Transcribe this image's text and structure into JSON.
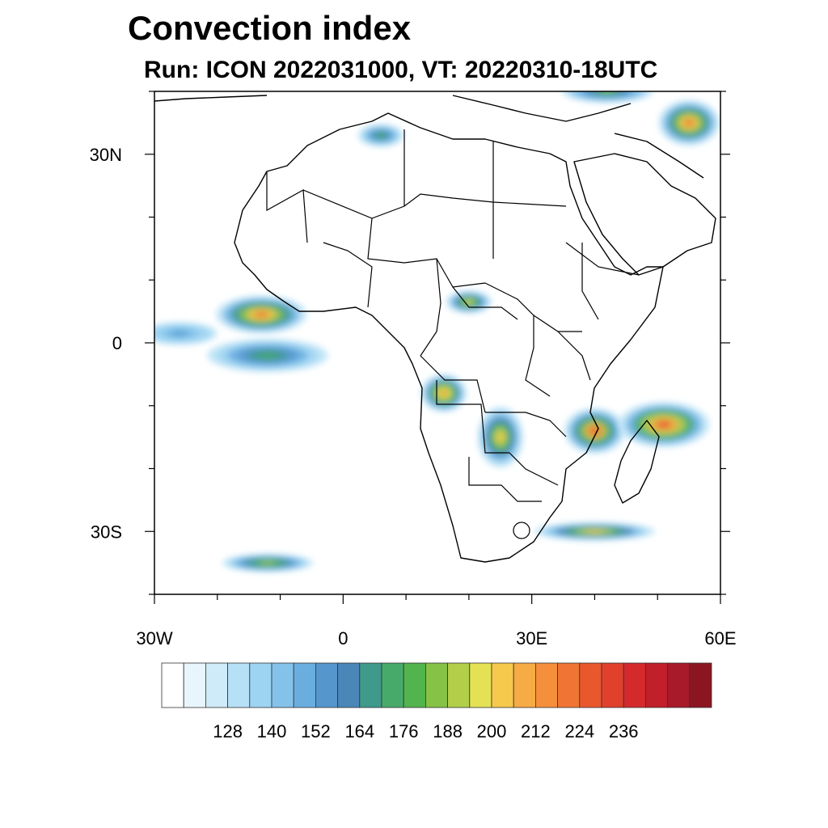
{
  "title": "Convection index",
  "subtitle": "Run: ICON 2022031000,  VT: 20220310-18UTC",
  "map": {
    "lon_range": [
      -30,
      60
    ],
    "lat_range": [
      -40,
      40
    ],
    "lat_ticks": [
      {
        "value": 30,
        "label": "30N"
      },
      {
        "value": 0,
        "label": "0"
      },
      {
        "value": -30,
        "label": "30S"
      }
    ],
    "lon_ticks": [
      {
        "value": -30,
        "label": "30W"
      },
      {
        "value": 0,
        "label": "0"
      },
      {
        "value": 30,
        "label": "30E"
      },
      {
        "value": 60,
        "label": "60E"
      }
    ],
    "minor_step": 10,
    "blobs": [
      {
        "region": "Gulf of Guinea / West Africa coast",
        "lon": -13,
        "lat": 4.5,
        "rlon": 6,
        "rlat": 2.5,
        "peak": 216
      },
      {
        "region": "Equatorial Atlantic west",
        "lon": -26,
        "lat": 1.5,
        "rlon": 5,
        "rlat": 1.5,
        "peak": 150
      },
      {
        "region": "Equatorial Atlantic south band",
        "lon": -12,
        "lat": -2,
        "rlon": 8,
        "rlat": 2.2,
        "peak": 170
      },
      {
        "region": "Angola",
        "lon": 16,
        "lat": -8,
        "rlon": 3,
        "rlat": 2.5,
        "peak": 214
      },
      {
        "region": "Zambia",
        "lon": 25,
        "lat": -15,
        "rlon": 3,
        "rlat": 4,
        "peak": 202
      },
      {
        "region": "Mozambique Channel",
        "lon": 40,
        "lat": -14,
        "rlon": 4,
        "rlat": 3,
        "peak": 222
      },
      {
        "region": "Indian Ocean east of Madagascar",
        "lon": 51,
        "lat": -13,
        "rlon": 6,
        "rlat": 3,
        "peak": 226
      },
      {
        "region": "Central African Republic",
        "lon": 20,
        "lat": 6.5,
        "rlon": 3,
        "rlat": 1.5,
        "peak": 196
      },
      {
        "region": "Persian Gulf region",
        "lon": 55,
        "lat": 35,
        "rlon": 4,
        "rlat": 3,
        "peak": 216
      },
      {
        "region": "Eastern Mediterranean",
        "lon": 42,
        "lat": 40,
        "rlon": 6,
        "rlat": 1.5,
        "peak": 180
      },
      {
        "region": "South Africa southern band",
        "lon": 40,
        "lat": -30,
        "rlon": 8,
        "rlat": 1.2,
        "peak": 200
      },
      {
        "region": "North Africa Libya",
        "lon": 6,
        "lat": 33,
        "rlon": 3,
        "rlat": 1.5,
        "peak": 170
      },
      {
        "region": "South Atlantic southwest band",
        "lon": -12,
        "lat": -35,
        "rlon": 6,
        "rlat": 1.2,
        "peak": 190
      }
    ]
  },
  "colorbar": {
    "colors": [
      "#ffffff",
      "#e8f5fc",
      "#cfeaf8",
      "#b6e0f6",
      "#9dd4f2",
      "#84c2ea",
      "#6aaee0",
      "#5596cd",
      "#4a86b8",
      "#3f9a8c",
      "#48aa6a",
      "#52b44c",
      "#86c246",
      "#b2cf4a",
      "#e4e254",
      "#f6c84c",
      "#f6ab44",
      "#f58f3b",
      "#f07534",
      "#e9582d",
      "#e0402c",
      "#d42a2c",
      "#c11f2a",
      "#a8192a",
      "#8b1622"
    ],
    "labels": [
      "128",
      "140",
      "152",
      "164",
      "176",
      "188",
      "200",
      "212",
      "224",
      "236"
    ],
    "label_boundaries": [
      2,
      4,
      6,
      8,
      10,
      12,
      14,
      16,
      18,
      20
    ]
  }
}
